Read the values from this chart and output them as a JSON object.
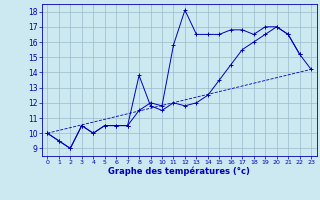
{
  "title": "Graphe des températures (°c)",
  "bg_color": "#cce8f0",
  "grid_color": "#99bbcc",
  "line_color": "#0000bb",
  "xmin": 0,
  "xmax": 23,
  "ymin": 9,
  "ymax": 18,
  "series1_x": [
    0,
    1,
    2,
    3,
    4,
    5,
    6,
    7,
    8,
    9,
    10,
    11,
    12,
    13,
    14,
    15,
    16,
    17,
    18,
    19,
    20,
    21,
    22,
    23
  ],
  "series1_y": [
    10.0,
    9.5,
    9.0,
    10.5,
    10.0,
    10.5,
    10.5,
    10.5,
    13.8,
    11.8,
    11.5,
    12.0,
    11.8,
    12.0,
    12.5,
    13.5,
    14.5,
    15.5,
    16.0,
    16.5,
    17.0,
    16.5,
    15.2,
    14.2
  ],
  "series2_x": [
    0,
    1,
    2,
    3,
    4,
    5,
    6,
    7,
    8,
    9,
    10,
    11,
    12,
    13,
    14,
    15,
    16,
    17,
    18,
    19,
    20,
    21,
    22
  ],
  "series2_y": [
    10.0,
    9.5,
    9.0,
    10.5,
    10.0,
    10.5,
    10.5,
    10.5,
    11.5,
    12.0,
    11.8,
    15.8,
    18.1,
    16.5,
    16.5,
    16.5,
    16.8,
    16.8,
    16.5,
    17.0,
    17.0,
    16.5,
    15.2
  ],
  "series3_x": [
    0,
    23
  ],
  "series3_y": [
    10.0,
    14.2
  ],
  "yticks": [
    9,
    10,
    11,
    12,
    13,
    14,
    15,
    16,
    17,
    18
  ],
  "xticks": [
    0,
    1,
    2,
    3,
    4,
    5,
    6,
    7,
    8,
    9,
    10,
    11,
    12,
    13,
    14,
    15,
    16,
    17,
    18,
    19,
    20,
    21,
    22,
    23
  ]
}
